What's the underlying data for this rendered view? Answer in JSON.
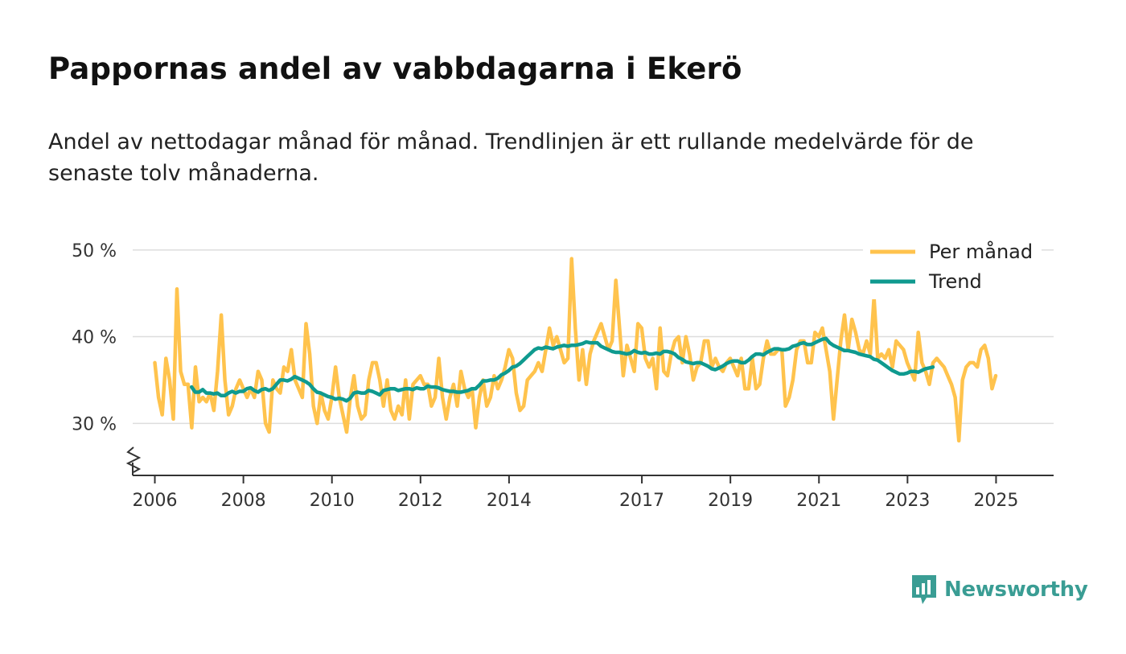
{
  "header": {
    "title": "Pappornas andel av vabbdagarna i Ekerö",
    "subtitle": "Andel av nettodagar månad för månad. Trendlinjen är ett rullande medelvärde för de senaste tolv månaderna."
  },
  "brand": {
    "name": "Newsworthy",
    "icon": "newsworthy-logo-icon"
  },
  "colors": {
    "monthly": "#ffc34d",
    "trend": "#0f9a8f",
    "grid": "#dddddd",
    "axis": "#333333",
    "brand": "#3a9d94"
  },
  "chart_data": {
    "type": "line",
    "title": "Pappornas andel av vabbdagarna i Ekerö",
    "xlabel": "",
    "ylabel": "",
    "xlim": [
      2005.5,
      2026.3
    ],
    "ylim": [
      24,
      51
    ],
    "y_ticks": [
      30,
      40,
      50
    ],
    "y_tick_labels": [
      "30 %",
      "40 %",
      "50 %"
    ],
    "x_ticks": [
      2006,
      2008,
      2010,
      2012,
      2014,
      2017,
      2019,
      2021,
      2023,
      2025
    ],
    "x_tick_labels": [
      "2006",
      "2008",
      "2010",
      "2012",
      "2014",
      "2017",
      "2019",
      "2021",
      "2023",
      "2025"
    ],
    "grid": true,
    "legend": "top-right",
    "series": [
      {
        "name": "Per månad",
        "start": 2006.0,
        "step": 0.0833,
        "values": [
          37,
          33,
          31,
          37.5,
          35,
          30.5,
          45.5,
          36,
          34.5,
          34.5,
          29.5,
          36.5,
          32.5,
          33,
          32.5,
          33.5,
          31.5,
          36,
          42.5,
          35,
          31,
          32,
          34,
          35,
          34,
          33,
          34,
          33,
          36,
          35,
          30,
          29,
          35,
          34,
          33.5,
          36.5,
          36,
          38.5,
          35,
          34,
          33,
          41.5,
          38,
          32,
          30,
          33.5,
          31.5,
          30.5,
          33,
          36.5,
          33,
          31,
          29,
          33,
          35.5,
          32,
          30.5,
          31,
          35,
          37,
          37,
          35,
          32,
          35,
          31.5,
          30.5,
          32,
          31,
          35,
          30.5,
          34.5,
          35,
          35.5,
          34.5,
          34.5,
          32,
          33,
          37.5,
          33,
          30.5,
          33,
          34.5,
          32,
          36,
          34,
          33,
          34,
          29.5,
          33,
          35,
          32,
          33,
          35.5,
          34,
          35,
          36.5,
          38.5,
          37.5,
          33.5,
          31.5,
          32,
          35,
          35.5,
          36,
          37,
          36,
          38.5,
          41,
          39,
          40,
          38.5,
          37,
          37.5,
          49,
          41,
          35,
          38.5,
          34.5,
          38,
          39.5,
          40.5,
          41.5,
          40,
          38.5,
          39.5,
          46.5,
          41,
          35.5,
          39,
          37.5,
          36,
          41.5,
          41,
          37.5,
          36.5,
          37.5,
          34,
          41,
          36,
          35.5,
          38,
          39.5,
          40,
          37,
          40,
          38,
          35,
          36.5,
          37,
          39.5,
          39.5,
          36.5,
          37.5,
          36.5,
          36,
          37,
          37.5,
          36.5,
          35.5,
          37.5,
          34,
          34,
          37.5,
          34,
          34.5,
          37.5,
          39.5,
          38,
          38,
          38.5,
          38.5,
          32,
          33,
          35,
          38.5,
          39.5,
          39.5,
          37,
          37,
          40.5,
          40,
          41,
          38.5,
          36,
          30.5,
          35,
          39.5,
          42.5,
          38.5,
          42,
          40.5,
          38.5,
          38,
          39.5,
          38,
          44.5,
          37.5,
          38,
          37.5,
          38.5,
          36.5,
          39.5,
          39,
          38.5,
          37,
          36,
          35,
          40.5,
          37,
          36,
          34.5,
          37,
          37.5,
          37,
          36.5,
          35.5,
          34.5,
          33,
          28,
          35,
          36.5,
          37,
          37,
          36.5,
          38.5,
          39,
          37.5,
          34,
          35.5
        ]
      },
      {
        "name": "Trend",
        "start": 2006.83,
        "step": 0.0833,
        "values": [
          34.2,
          33.6,
          33.6,
          33.9,
          33.5,
          33.5,
          33.4,
          33.5,
          33.2,
          33.2,
          33.5,
          33.7,
          33.5,
          33.7,
          33.7,
          34,
          34.1,
          33.8,
          33.6,
          33.9,
          34,
          33.8,
          34,
          34.5,
          35,
          35,
          34.9,
          35.1,
          35.4,
          35.2,
          35,
          34.8,
          34.5,
          34,
          33.6,
          33.5,
          33.3,
          33.1,
          33,
          32.8,
          32.9,
          32.8,
          32.6,
          32.9,
          33.5,
          33.6,
          33.5,
          33.5,
          33.8,
          33.7,
          33.5,
          33.3,
          33.8,
          33.9,
          34,
          34,
          33.8,
          33.9,
          34,
          34,
          33.9,
          34.1,
          34,
          34,
          34.3,
          34.2,
          34.2,
          34.1,
          33.9,
          33.8,
          33.7,
          33.7,
          33.6,
          33.6,
          33.7,
          33.8,
          34,
          34,
          34.4,
          34.9,
          34.9,
          35,
          35,
          35.2,
          35.6,
          35.8,
          36.1,
          36.5,
          36.6,
          36.9,
          37.3,
          37.7,
          38.1,
          38.5,
          38.7,
          38.6,
          38.8,
          38.7,
          38.6,
          38.8,
          38.9,
          39,
          38.9,
          39,
          39,
          39.1,
          39.2,
          39.4,
          39.3,
          39.3,
          39.3,
          38.9,
          38.7,
          38.5,
          38.3,
          38.2,
          38.2,
          38.1,
          38,
          38.1,
          38.4,
          38.2,
          38.1,
          38.2,
          38,
          38,
          38.1,
          38,
          38.3,
          38.3,
          38.2,
          38,
          37.6,
          37.4,
          37.1,
          37,
          36.9,
          37,
          37,
          36.8,
          36.6,
          36.3,
          36.2,
          36.4,
          36.6,
          36.9,
          37.1,
          37.2,
          37.2,
          37,
          37,
          37.3,
          37.7,
          38,
          38,
          37.9,
          38.2,
          38.4,
          38.6,
          38.6,
          38.5,
          38.5,
          38.6,
          38.9,
          39,
          39.2,
          39.3,
          39.1,
          39.1,
          39.3,
          39.5,
          39.7,
          39.8,
          39.3,
          39,
          38.8,
          38.6,
          38.4,
          38.4,
          38.3,
          38.2,
          38,
          37.9,
          37.8,
          37.7,
          37.4,
          37.3,
          37,
          36.7,
          36.4,
          36.1,
          35.9,
          35.7,
          35.7,
          35.8,
          36,
          36,
          35.9,
          36.1,
          36.3,
          36.4,
          36.5
        ]
      }
    ]
  }
}
